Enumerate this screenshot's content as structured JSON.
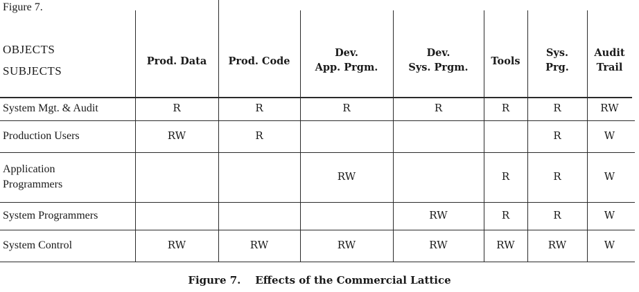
{
  "figure_label": "Figure 7.",
  "header": {
    "objects": "OBJECTS",
    "subjects": "SUBJECTS"
  },
  "columns": [
    {
      "lines": [
        "Prod. Data"
      ]
    },
    {
      "lines": [
        "Prod. Code"
      ]
    },
    {
      "lines": [
        "Dev.",
        "App. Prgm."
      ]
    },
    {
      "lines": [
        "Dev.",
        "Sys. Prgm."
      ]
    },
    {
      "lines": [
        "Tools"
      ]
    },
    {
      "lines": [
        "Sys.",
        "Prg."
      ]
    },
    {
      "lines": [
        "Audit",
        "Trail"
      ]
    }
  ],
  "rows": [
    {
      "label": [
        "System Mgt. & Audit"
      ],
      "cells": [
        "R",
        "R",
        "R",
        "R",
        "R",
        "R",
        "RW"
      ]
    },
    {
      "label": [
        "Production Users"
      ],
      "cells": [
        "RW",
        "R",
        "",
        "",
        "",
        "R",
        "W"
      ]
    },
    {
      "label": [
        "Application",
        "Programmers"
      ],
      "cells": [
        "",
        "",
        "RW",
        "",
        "R",
        "R",
        "W"
      ]
    },
    {
      "label": [
        "System Programmers"
      ],
      "cells": [
        "",
        "",
        "",
        "RW",
        "R",
        "R",
        "W"
      ]
    },
    {
      "label": [
        "System Control"
      ],
      "cells": [
        "RW",
        "RW",
        "RW",
        "RW",
        "RW",
        "RW",
        "W"
      ]
    }
  ],
  "caption": {
    "number": "Figure 7.",
    "title": "Effects of the Commercial Lattice"
  }
}
